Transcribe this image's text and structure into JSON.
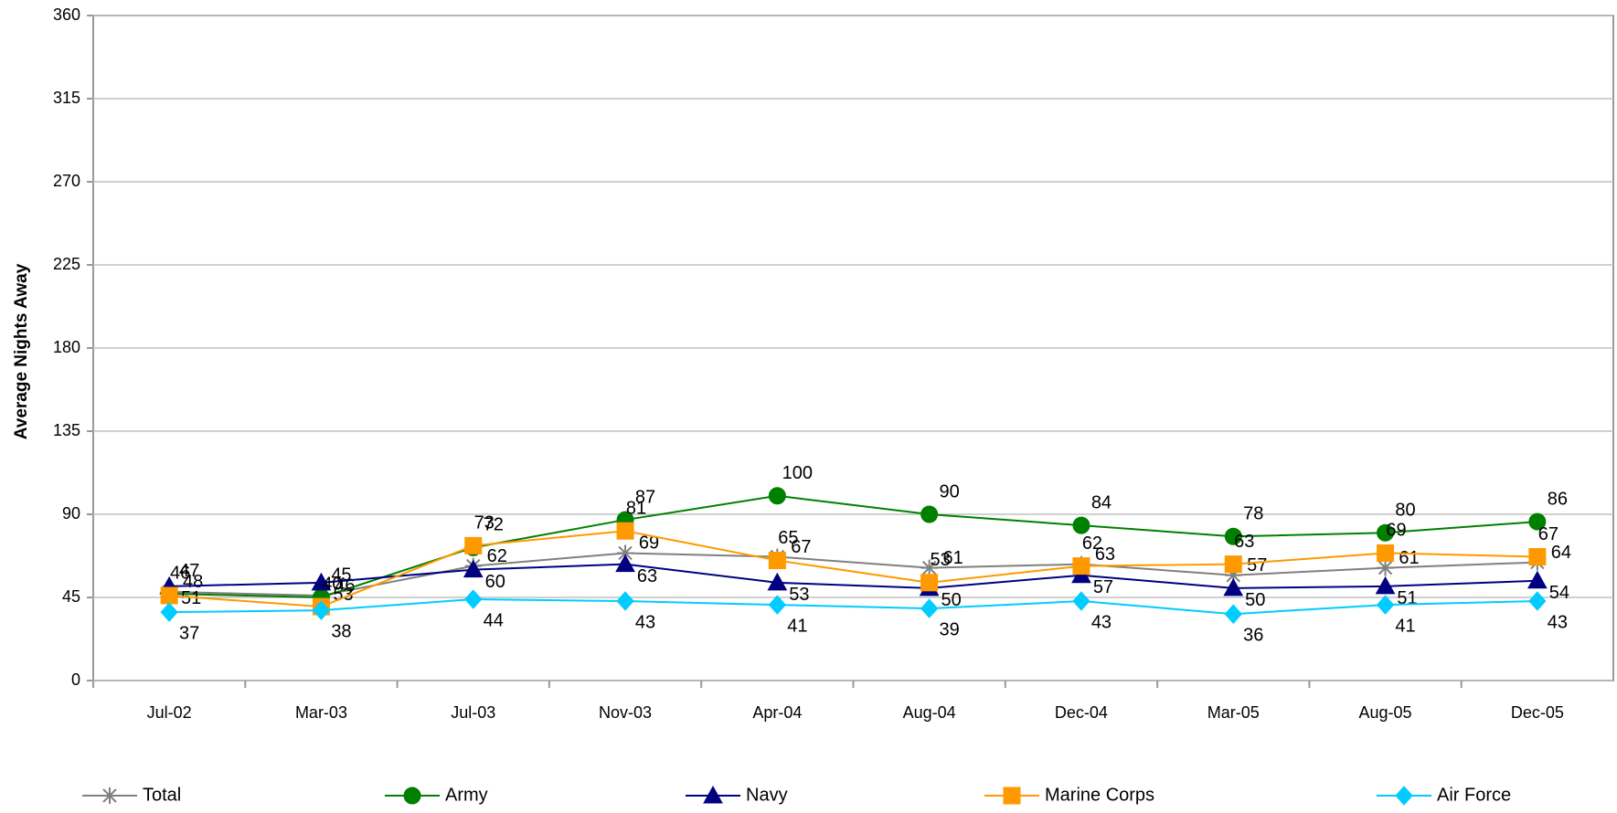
{
  "chart_data": {
    "type": "line",
    "y_label": "Average Nights Away",
    "categories": [
      "Jul-02",
      "Mar-03",
      "Jul-03",
      "Nov-03",
      "Apr-04",
      "Aug-04",
      "Dec-04",
      "Mar-05",
      "Aug-05",
      "Dec-05"
    ],
    "series": [
      {
        "name": "Total",
        "color": "#808080",
        "marker": "star",
        "values": [
          48,
          46,
          62,
          69,
          67,
          61,
          63,
          57,
          61,
          64
        ]
      },
      {
        "name": "Army",
        "color": "#008000",
        "marker": "circle",
        "values": [
          47,
          45,
          72,
          87,
          100,
          90,
          84,
          78,
          80,
          86
        ]
      },
      {
        "name": "Navy",
        "color": "#000080",
        "marker": "triangle",
        "values": [
          51,
          53,
          60,
          63,
          53,
          50,
          57,
          50,
          51,
          54
        ]
      },
      {
        "name": "Marine Corps",
        "color": "#ff9900",
        "marker": "square",
        "values": [
          46,
          40,
          73,
          81,
          65,
          53,
          62,
          63,
          69,
          67
        ]
      },
      {
        "name": "Air Force",
        "color": "#00ccff",
        "marker": "diamond",
        "values": [
          37,
          38,
          44,
          43,
          41,
          39,
          43,
          36,
          41,
          43
        ]
      }
    ],
    "ylim": [
      0,
      360
    ],
    "yticks": [
      0,
      45,
      90,
      135,
      180,
      225,
      270,
      315,
      360
    ],
    "grid": true,
    "legend": "bottom"
  }
}
